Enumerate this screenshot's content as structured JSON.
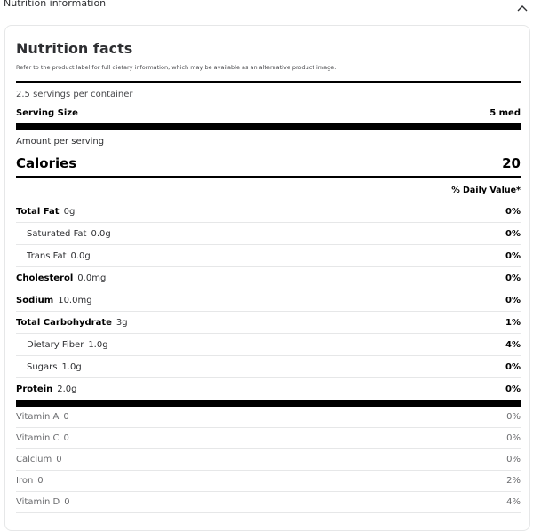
{
  "section_title": "Nutrition information",
  "title": "Nutrition facts",
  "disclaimer": "Refer to the product label for full dietary information, which may be available as an alternative product image.",
  "servings": "2.5 servings per container",
  "serving_size_label": "Serving Size",
  "serving_size_value": "5 med",
  "amount_label": "Amount per serving",
  "calories_label": "Calories",
  "calories_value": "20",
  "dv_header": "% Daily Value*",
  "nutrients": [
    {
      "name": "Total Fat",
      "amount": "0g",
      "pct": "0%",
      "bold": true
    },
    {
      "name": "Saturated Fat",
      "amount": "0.0g",
      "pct": "0%",
      "bold": false
    },
    {
      "name": "Trans Fat",
      "amount": "0.0g",
      "pct": "0%",
      "bold": false
    },
    {
      "name": "Cholesterol",
      "amount": "0.0mg",
      "pct": "0%",
      "bold": true
    },
    {
      "name": "Sodium",
      "amount": "10.0mg",
      "pct": "0%",
      "bold": true
    },
    {
      "name": "Total Carbohydrate",
      "amount": "3g",
      "pct": "1%",
      "bold": true
    },
    {
      "name": "Dietary Fiber",
      "amount": "1.0g",
      "pct": "4%",
      "bold": false
    },
    {
      "name": "Sugars",
      "amount": "1.0g",
      "pct": "0%",
      "bold": false
    },
    {
      "name": "Protein",
      "amount": "2.0g",
      "pct": "0%",
      "bold": true
    }
  ],
  "vitamins": [
    {
      "name": "Vitamin A",
      "amount": "0",
      "pct": "0%"
    },
    {
      "name": "Vitamin C",
      "amount": "0",
      "pct": "0%"
    },
    {
      "name": "Calcium",
      "amount": "0",
      "pct": "0%"
    },
    {
      "name": "Iron",
      "amount": "0",
      "pct": "2%"
    },
    {
      "name": "Vitamin D",
      "amount": "0",
      "pct": "4%"
    }
  ]
}
